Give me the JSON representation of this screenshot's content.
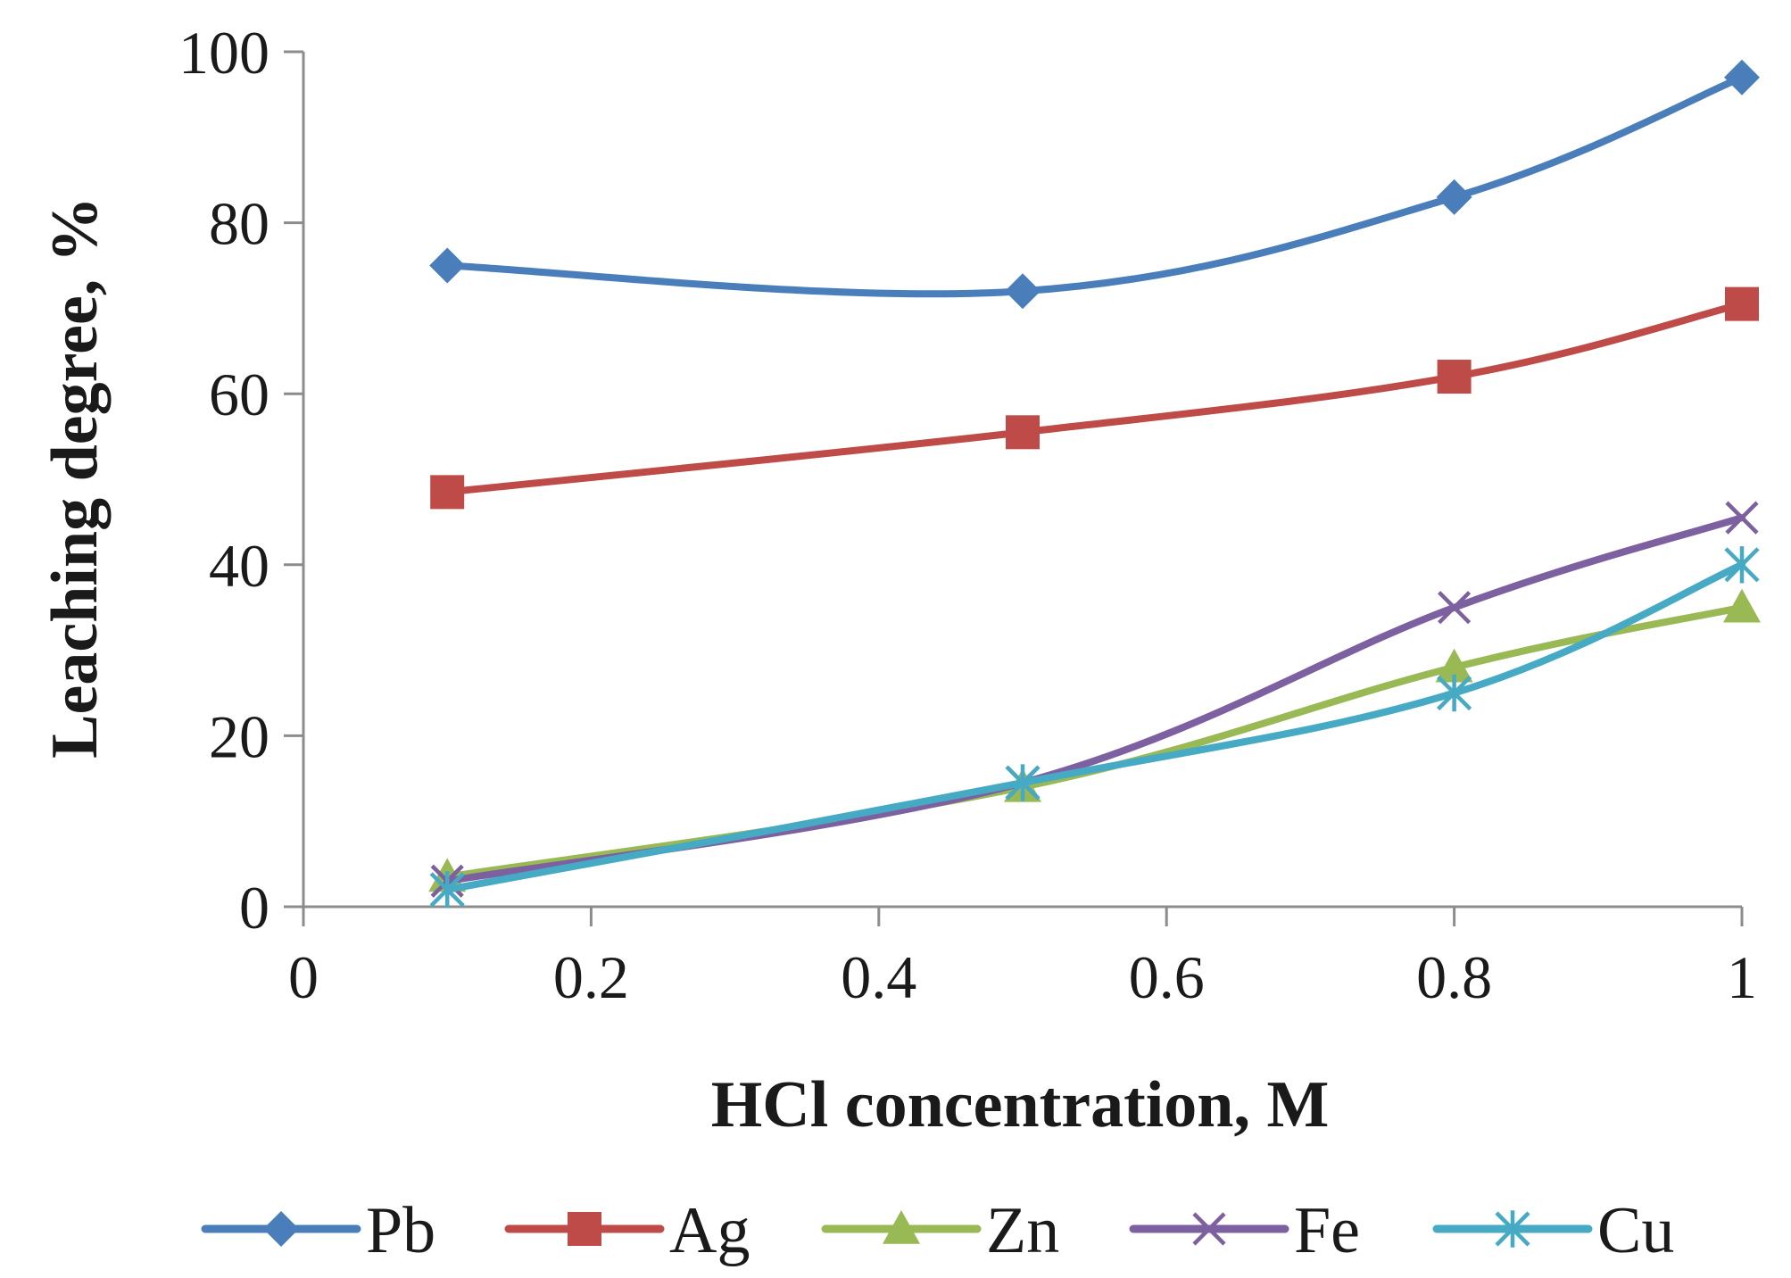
{
  "chart_data": {
    "type": "line",
    "title": "",
    "xlabel": "HCl concentration, M",
    "ylabel": "Leaching degree, %",
    "xlim": [
      0,
      1
    ],
    "ylim": [
      0,
      100
    ],
    "x_ticks": [
      0,
      0.2,
      0.4,
      0.6,
      0.8,
      1
    ],
    "x_tick_labels": [
      "0",
      "0.2",
      "0.4",
      "0.6",
      "0.8",
      "1"
    ],
    "y_ticks": [
      0,
      20,
      40,
      60,
      80,
      100
    ],
    "y_tick_labels": [
      "0",
      "20",
      "40",
      "60",
      "80",
      "100"
    ],
    "grid": false,
    "legend_position": "bottom",
    "x": [
      0.1,
      0.5,
      0.8,
      1.0
    ],
    "series": [
      {
        "name": "Pb",
        "values": [
          75,
          72,
          83,
          97
        ],
        "color": "#4a7ebb",
        "marker": "diamond"
      },
      {
        "name": "Ag",
        "values": [
          48.5,
          55.5,
          62,
          70.5
        ],
        "color": "#be4b48",
        "marker": "square"
      },
      {
        "name": "Zn",
        "values": [
          3.5,
          14,
          28,
          35
        ],
        "color": "#98b954",
        "marker": "triangle"
      },
      {
        "name": "Fe",
        "values": [
          3,
          14.5,
          35,
          45.5
        ],
        "color": "#7d60a0",
        "marker": "x"
      },
      {
        "name": "Cu",
        "values": [
          2,
          14.5,
          25,
          40
        ],
        "color": "#46aac5",
        "marker": "star"
      }
    ]
  }
}
